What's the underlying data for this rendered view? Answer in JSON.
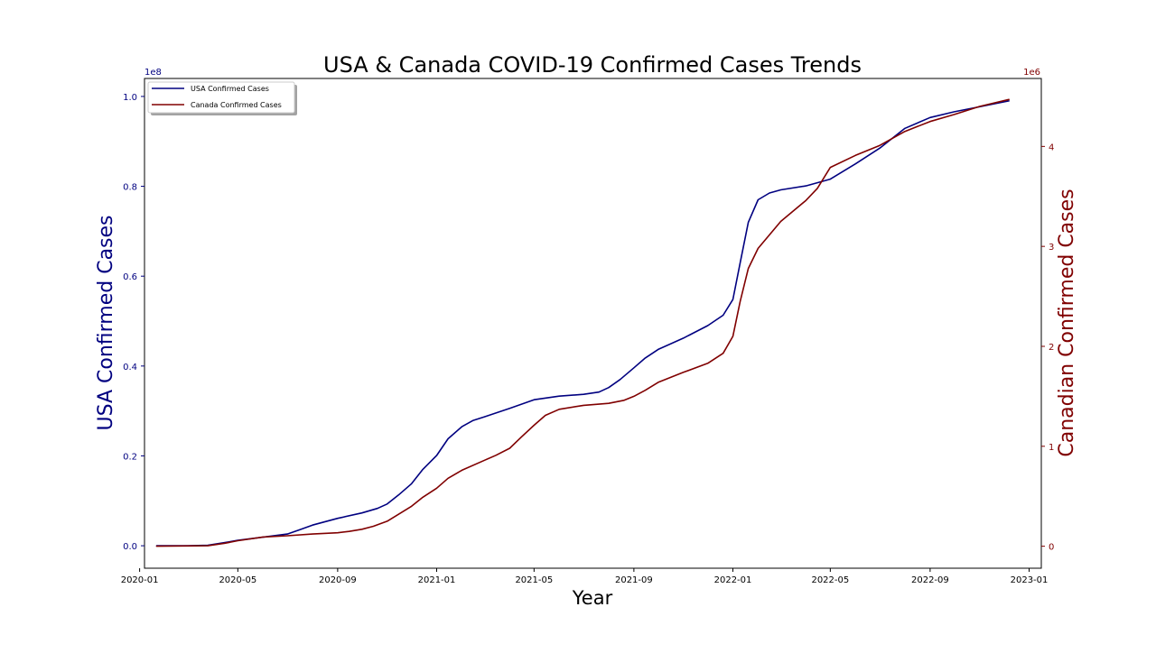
{
  "chart_data": {
    "type": "line",
    "title": "USA & Canada COVID-19 Confirmed Cases Trends",
    "xlabel": "Year",
    "ylabel_left": "USA Confirmed Cases",
    "ylabel_right": "Canadian Confirmed Cases",
    "left_axis_offset": "1e8",
    "right_axis_offset": "1e6",
    "left_ylim": [
      -0.05,
      1.04
    ],
    "right_ylim": [
      -0.22,
      4.68
    ],
    "xlim": [
      "2020-01-07",
      "2023-01-16"
    ],
    "grid": false,
    "legend_position": "top-left",
    "colors": {
      "usa": "#000080",
      "canada": "#800000",
      "axis": "#000000"
    },
    "x_ticks": [
      "2020-01",
      "2020-05",
      "2020-09",
      "2021-01",
      "2021-05",
      "2021-09",
      "2022-01",
      "2022-05",
      "2022-09",
      "2023-01"
    ],
    "left_ticks": [
      "0.0",
      "0.2",
      "0.4",
      "0.6",
      "0.8",
      "1.0"
    ],
    "right_ticks": [
      "0",
      "1",
      "2",
      "3",
      "4"
    ],
    "series": [
      {
        "name": "USA Confirmed Cases",
        "axis": "left",
        "color": "#000080",
        "points": [
          [
            "2020-01-22",
            0.0
          ],
          [
            "2020-03-01",
            0.0
          ],
          [
            "2020-03-25",
            0.001
          ],
          [
            "2020-04-15",
            0.007
          ],
          [
            "2020-05-01",
            0.012
          ],
          [
            "2020-06-01",
            0.019
          ],
          [
            "2020-07-01",
            0.026
          ],
          [
            "2020-07-15",
            0.035
          ],
          [
            "2020-08-01",
            0.046
          ],
          [
            "2020-09-01",
            0.061
          ],
          [
            "2020-10-01",
            0.073
          ],
          [
            "2020-10-20",
            0.083
          ],
          [
            "2020-11-01",
            0.093
          ],
          [
            "2020-11-15",
            0.113
          ],
          [
            "2020-12-01",
            0.138
          ],
          [
            "2020-12-15",
            0.17
          ],
          [
            "2021-01-01",
            0.201
          ],
          [
            "2021-01-15",
            0.238
          ],
          [
            "2021-02-01",
            0.265
          ],
          [
            "2021-02-15",
            0.279
          ],
          [
            "2021-03-01",
            0.287
          ],
          [
            "2021-04-01",
            0.306
          ],
          [
            "2021-05-01",
            0.325
          ],
          [
            "2021-06-01",
            0.333
          ],
          [
            "2021-07-01",
            0.337
          ],
          [
            "2021-07-20",
            0.342
          ],
          [
            "2021-08-01",
            0.352
          ],
          [
            "2021-08-15",
            0.37
          ],
          [
            "2021-09-01",
            0.396
          ],
          [
            "2021-09-15",
            0.418
          ],
          [
            "2021-10-01",
            0.437
          ],
          [
            "2021-11-01",
            0.462
          ],
          [
            "2021-12-01",
            0.49
          ],
          [
            "2021-12-20",
            0.513
          ],
          [
            "2022-01-01",
            0.548
          ],
          [
            "2022-01-10",
            0.63
          ],
          [
            "2022-01-20",
            0.72
          ],
          [
            "2022-02-01",
            0.77
          ],
          [
            "2022-02-15",
            0.785
          ],
          [
            "2022-03-01",
            0.792
          ],
          [
            "2022-04-01",
            0.801
          ],
          [
            "2022-05-01",
            0.816
          ],
          [
            "2022-06-01",
            0.85
          ],
          [
            "2022-07-01",
            0.885
          ],
          [
            "2022-08-01",
            0.929
          ],
          [
            "2022-09-01",
            0.953
          ],
          [
            "2022-10-01",
            0.966
          ],
          [
            "2022-11-01",
            0.977
          ],
          [
            "2022-12-07",
            0.99
          ]
        ]
      },
      {
        "name": "Canada Confirmed Cases",
        "axis": "right",
        "color": "#800000",
        "points": [
          [
            "2020-01-22",
            0.0
          ],
          [
            "2020-03-25",
            0.005
          ],
          [
            "2020-04-15",
            0.03
          ],
          [
            "2020-05-01",
            0.055
          ],
          [
            "2020-06-01",
            0.092
          ],
          [
            "2020-07-01",
            0.105
          ],
          [
            "2020-08-01",
            0.122
          ],
          [
            "2020-09-01",
            0.135
          ],
          [
            "2020-09-15",
            0.148
          ],
          [
            "2020-10-01",
            0.17
          ],
          [
            "2020-10-15",
            0.2
          ],
          [
            "2020-11-01",
            0.25
          ],
          [
            "2020-11-15",
            0.32
          ],
          [
            "2020-12-01",
            0.4
          ],
          [
            "2020-12-15",
            0.49
          ],
          [
            "2021-01-01",
            0.58
          ],
          [
            "2021-01-15",
            0.68
          ],
          [
            "2021-02-01",
            0.76
          ],
          [
            "2021-03-01",
            0.86
          ],
          [
            "2021-03-15",
            0.91
          ],
          [
            "2021-04-01",
            0.98
          ],
          [
            "2021-04-15",
            1.09
          ],
          [
            "2021-05-01",
            1.21
          ],
          [
            "2021-05-15",
            1.31
          ],
          [
            "2021-06-01",
            1.37
          ],
          [
            "2021-07-01",
            1.41
          ],
          [
            "2021-08-01",
            1.43
          ],
          [
            "2021-08-20",
            1.46
          ],
          [
            "2021-09-01",
            1.5
          ],
          [
            "2021-09-15",
            1.56
          ],
          [
            "2021-10-01",
            1.64
          ],
          [
            "2021-11-01",
            1.74
          ],
          [
            "2021-12-01",
            1.83
          ],
          [
            "2021-12-20",
            1.93
          ],
          [
            "2022-01-01",
            2.1
          ],
          [
            "2022-01-10",
            2.45
          ],
          [
            "2022-01-20",
            2.78
          ],
          [
            "2022-02-01",
            2.98
          ],
          [
            "2022-03-01",
            3.25
          ],
          [
            "2022-04-01",
            3.46
          ],
          [
            "2022-04-15",
            3.58
          ],
          [
            "2022-05-01",
            3.79
          ],
          [
            "2022-06-01",
            3.91
          ],
          [
            "2022-07-01",
            4.01
          ],
          [
            "2022-08-01",
            4.15
          ],
          [
            "2022-09-01",
            4.25
          ],
          [
            "2022-10-01",
            4.32
          ],
          [
            "2022-11-01",
            4.4
          ],
          [
            "2022-12-07",
            4.47
          ]
        ]
      }
    ]
  }
}
